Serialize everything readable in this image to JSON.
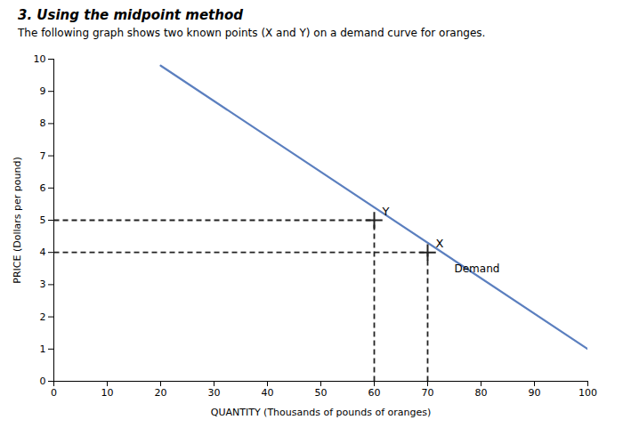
{
  "chart_data": {
    "type": "line",
    "title": "3. Using the midpoint method",
    "subtitle": "The following graph shows two known points (X and Y) on a demand curve for oranges.",
    "xlabel": "QUANTITY (Thousands of pounds of oranges)",
    "ylabel": "PRICE (Dollars per pound)",
    "xlim": [
      0,
      100
    ],
    "ylim": [
      0,
      10
    ],
    "xticks": [
      0,
      10,
      20,
      30,
      40,
      50,
      60,
      70,
      80,
      90,
      100
    ],
    "yticks": [
      0,
      1,
      2,
      3,
      4,
      5,
      6,
      7,
      8,
      9,
      10
    ],
    "grid": false,
    "series": [
      {
        "type": "line",
        "color": "#5b7fbf",
        "line_style": "solid",
        "x": [
          20,
          100
        ],
        "values": [
          9.8,
          1.0
        ]
      },
      {
        "type": "scatter",
        "color": "#222222",
        "marker": "plus",
        "line_style": "dashed",
        "x": [
          60,
          70
        ],
        "values": [
          5,
          4
        ],
        "labels": [
          "Y",
          "X"
        ]
      }
    ],
    "annotations": [
      {
        "text": "Demand",
        "x": 75,
        "y": 3.5
      }
    ]
  }
}
